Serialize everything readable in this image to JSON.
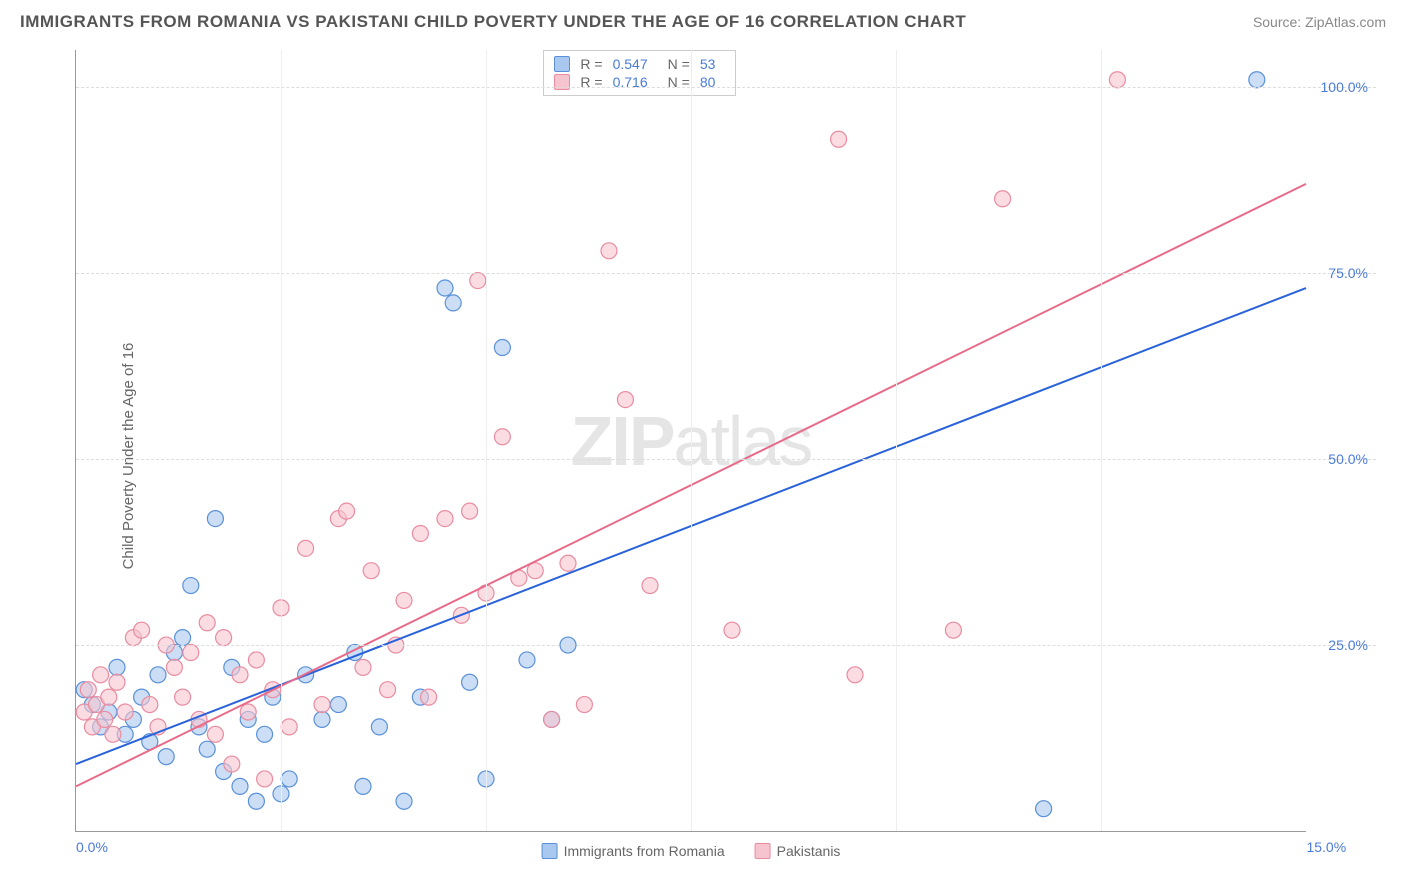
{
  "title": "IMMIGRANTS FROM ROMANIA VS PAKISTANI CHILD POVERTY UNDER THE AGE OF 16 CORRELATION CHART",
  "source": "Source: ZipAtlas.com",
  "ylabel": "Child Poverty Under the Age of 16",
  "watermark_bold": "ZIP",
  "watermark_light": "atlas",
  "chart": {
    "type": "scatter",
    "xlim": [
      0,
      15
    ],
    "ylim": [
      0,
      105
    ],
    "yticks": [
      25,
      50,
      75,
      100
    ],
    "ytick_labels": [
      "25.0%",
      "50.0%",
      "75.0%",
      "100.0%"
    ],
    "xtick_left": "0.0%",
    "xtick_right": "15.0%",
    "xgridlines": [
      2.5,
      5,
      7.5,
      10,
      12.5
    ],
    "background_color": "#ffffff",
    "grid_color": "#dddddd",
    "axis_color": "#999999",
    "tick_color": "#4a7bd8",
    "marker_radius": 8,
    "marker_stroke_width": 1.2,
    "line_width": 2
  },
  "series": [
    {
      "name": "Immigrants from Romania",
      "fill_color": "#a9c8ef",
      "stroke_color": "#5a91d8",
      "line_color": "#2962d9",
      "R": "0.547",
      "N": "53",
      "trend": {
        "x1": 0,
        "y1": 9,
        "x2": 15,
        "y2": 73
      },
      "points": [
        [
          0.1,
          19
        ],
        [
          0.2,
          17
        ],
        [
          0.3,
          14
        ],
        [
          0.4,
          16
        ],
        [
          0.5,
          22
        ],
        [
          0.6,
          13
        ],
        [
          0.7,
          15
        ],
        [
          0.8,
          18
        ],
        [
          0.9,
          12
        ],
        [
          1.0,
          21
        ],
        [
          1.1,
          10
        ],
        [
          1.2,
          24
        ],
        [
          1.3,
          26
        ],
        [
          1.4,
          33
        ],
        [
          1.5,
          14
        ],
        [
          1.6,
          11
        ],
        [
          1.7,
          42
        ],
        [
          1.8,
          8
        ],
        [
          1.9,
          22
        ],
        [
          2.0,
          6
        ],
        [
          2.1,
          15
        ],
        [
          2.2,
          4
        ],
        [
          2.3,
          13
        ],
        [
          2.4,
          18
        ],
        [
          2.5,
          5
        ],
        [
          2.6,
          7
        ],
        [
          2.8,
          21
        ],
        [
          3.0,
          15
        ],
        [
          3.2,
          17
        ],
        [
          3.4,
          24
        ],
        [
          3.5,
          6
        ],
        [
          3.7,
          14
        ],
        [
          4.0,
          4
        ],
        [
          4.2,
          18
        ],
        [
          4.5,
          73
        ],
        [
          4.6,
          71
        ],
        [
          4.8,
          20
        ],
        [
          5.0,
          7
        ],
        [
          5.2,
          65
        ],
        [
          5.5,
          23
        ],
        [
          5.8,
          15
        ],
        [
          6.0,
          25
        ],
        [
          11.8,
          3
        ],
        [
          14.4,
          101
        ]
      ]
    },
    {
      "name": "Pakistanis",
      "fill_color": "#f6c4ce",
      "stroke_color": "#e98ca0",
      "line_color": "#e86b89",
      "R": "0.716",
      "N": "80",
      "trend": {
        "x1": 0,
        "y1": 6,
        "x2": 15,
        "y2": 87
      },
      "points": [
        [
          0.1,
          16
        ],
        [
          0.15,
          19
        ],
        [
          0.2,
          14
        ],
        [
          0.25,
          17
        ],
        [
          0.3,
          21
        ],
        [
          0.35,
          15
        ],
        [
          0.4,
          18
        ],
        [
          0.45,
          13
        ],
        [
          0.5,
          20
        ],
        [
          0.6,
          16
        ],
        [
          0.7,
          26
        ],
        [
          0.8,
          27
        ],
        [
          0.9,
          17
        ],
        [
          1.0,
          14
        ],
        [
          1.1,
          25
        ],
        [
          1.2,
          22
        ],
        [
          1.3,
          18
        ],
        [
          1.4,
          24
        ],
        [
          1.5,
          15
        ],
        [
          1.6,
          28
        ],
        [
          1.7,
          13
        ],
        [
          1.8,
          26
        ],
        [
          1.9,
          9
        ],
        [
          2.0,
          21
        ],
        [
          2.1,
          16
        ],
        [
          2.2,
          23
        ],
        [
          2.3,
          7
        ],
        [
          2.4,
          19
        ],
        [
          2.5,
          30
        ],
        [
          2.6,
          14
        ],
        [
          2.8,
          38
        ],
        [
          3.0,
          17
        ],
        [
          3.2,
          42
        ],
        [
          3.3,
          43
        ],
        [
          3.5,
          22
        ],
        [
          3.6,
          35
        ],
        [
          3.8,
          19
        ],
        [
          3.9,
          25
        ],
        [
          4.0,
          31
        ],
        [
          4.2,
          40
        ],
        [
          4.3,
          18
        ],
        [
          4.5,
          42
        ],
        [
          4.7,
          29
        ],
        [
          4.8,
          43
        ],
        [
          4.9,
          74
        ],
        [
          5.0,
          32
        ],
        [
          5.2,
          53
        ],
        [
          5.4,
          34
        ],
        [
          5.6,
          35
        ],
        [
          5.8,
          15
        ],
        [
          6.0,
          36
        ],
        [
          6.2,
          17
        ],
        [
          6.5,
          78
        ],
        [
          6.7,
          58
        ],
        [
          7.0,
          33
        ],
        [
          8.0,
          27
        ],
        [
          9.3,
          93
        ],
        [
          9.5,
          21
        ],
        [
          10.7,
          27
        ],
        [
          11.3,
          85
        ],
        [
          12.7,
          101
        ]
      ]
    }
  ],
  "legend_labels": {
    "R": "R =",
    "N": "N ="
  }
}
